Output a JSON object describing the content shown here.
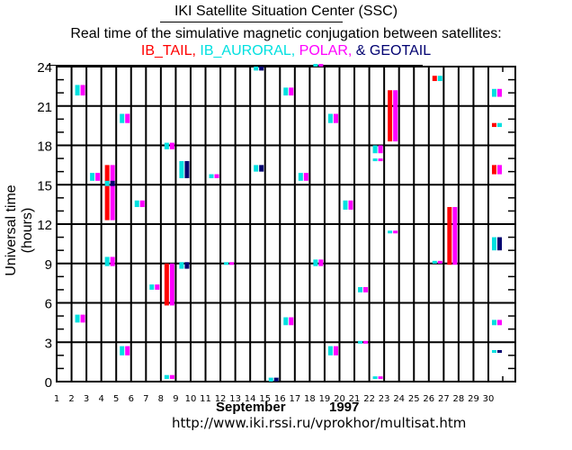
{
  "header": {
    "title": "IKI Satellite Situation Center (SSC)",
    "subtitle": "Real time of the simulative magnetic conjugation between satellites:",
    "legend": [
      {
        "label": "IB_TAIL,",
        "color": "#ff0000"
      },
      {
        "label": " IB_AURORAL,",
        "color": "#00e0e0"
      },
      {
        "label": " POLAR,",
        "color": "#ff00ff"
      },
      {
        "label": " & GEOTAIL",
        "color": "#000070"
      }
    ]
  },
  "footer": {
    "month": "September",
    "year": "1997",
    "url": "http://www.iki.rssi.ru/vprokhor/multisat.htm"
  },
  "chart_data": {
    "type": "scatter",
    "title": "Real time of the simulative magnetic conjugation between satellites",
    "xlabel": "September 1997",
    "ylabel": "Universal time (hours)",
    "xlim": [
      1,
      31
    ],
    "ylim": [
      0,
      24
    ],
    "x_ticks": [
      "1",
      "2",
      "3",
      "4",
      "5",
      "6",
      "7",
      "8",
      "9",
      "10",
      "11",
      "12",
      "13",
      "14",
      "15",
      "16",
      "17",
      "18",
      "19",
      "20",
      "21",
      "22",
      "23",
      "24",
      "25",
      "26",
      "27",
      "28",
      "29",
      "30"
    ],
    "y_ticks": [
      0,
      3,
      6,
      9,
      12,
      15,
      18,
      21,
      24
    ],
    "grid": true,
    "series_colors": {
      "IB_TAIL": "#ff0000",
      "IB_AURORAL": "#00e0e0",
      "POLAR": "#ff00ff",
      "GEOTAIL": "#000070"
    },
    "events": [
      {
        "day": 2,
        "sat": "IB_AURORAL",
        "start": 21.8,
        "end": 22.6
      },
      {
        "day": 2,
        "sat": "POLAR",
        "start": 21.8,
        "end": 22.6
      },
      {
        "day": 2,
        "sat": "IB_AURORAL",
        "start": 4.5,
        "end": 5.1
      },
      {
        "day": 2,
        "sat": "POLAR",
        "start": 4.5,
        "end": 5.1
      },
      {
        "day": 3,
        "sat": "IB_AURORAL",
        "start": 15.3,
        "end": 15.9
      },
      {
        "day": 3,
        "sat": "POLAR",
        "start": 15.3,
        "end": 15.9
      },
      {
        "day": 4,
        "sat": "IB_TAIL",
        "start": 12.3,
        "end": 16.5
      },
      {
        "day": 4,
        "sat": "POLAR",
        "start": 12.3,
        "end": 16.5
      },
      {
        "day": 4,
        "sat": "IB_AURORAL",
        "start": 14.9,
        "end": 15.3
      },
      {
        "day": 4,
        "sat": "GEOTAIL",
        "start": 14.9,
        "end": 15.3
      },
      {
        "day": 4,
        "sat": "IB_AURORAL",
        "start": 8.8,
        "end": 9.5
      },
      {
        "day": 4,
        "sat": "POLAR",
        "start": 8.8,
        "end": 9.5
      },
      {
        "day": 5,
        "sat": "IB_AURORAL",
        "start": 19.7,
        "end": 20.4
      },
      {
        "day": 5,
        "sat": "POLAR",
        "start": 19.7,
        "end": 20.4
      },
      {
        "day": 5,
        "sat": "IB_AURORAL",
        "start": 2.0,
        "end": 2.7
      },
      {
        "day": 5,
        "sat": "POLAR",
        "start": 2.0,
        "end": 2.7
      },
      {
        "day": 6,
        "sat": "IB_AURORAL",
        "start": 13.3,
        "end": 13.8
      },
      {
        "day": 6,
        "sat": "POLAR",
        "start": 13.3,
        "end": 13.8
      },
      {
        "day": 7,
        "sat": "IB_AURORAL",
        "start": 7.0,
        "end": 7.4
      },
      {
        "day": 7,
        "sat": "POLAR",
        "start": 7.0,
        "end": 7.4
      },
      {
        "day": 8,
        "sat": "IB_AURORAL",
        "start": 17.7,
        "end": 18.2
      },
      {
        "day": 8,
        "sat": "POLAR",
        "start": 17.7,
        "end": 18.2
      },
      {
        "day": 8,
        "sat": "IB_TAIL",
        "start": 5.8,
        "end": 9.0
      },
      {
        "day": 8,
        "sat": "POLAR",
        "start": 5.8,
        "end": 9.0
      },
      {
        "day": 8,
        "sat": "IB_AURORAL",
        "start": 0.2,
        "end": 0.5
      },
      {
        "day": 8,
        "sat": "POLAR",
        "start": 0.2,
        "end": 0.5
      },
      {
        "day": 9,
        "sat": "IB_AURORAL",
        "start": 15.5,
        "end": 16.8
      },
      {
        "day": 9,
        "sat": "GEOTAIL",
        "start": 15.5,
        "end": 16.8
      },
      {
        "day": 9,
        "sat": "IB_AURORAL",
        "start": 8.6,
        "end": 9.1
      },
      {
        "day": 9,
        "sat": "GEOTAIL",
        "start": 8.6,
        "end": 9.1
      },
      {
        "day": 11,
        "sat": "IB_AURORAL",
        "start": 15.5,
        "end": 15.8
      },
      {
        "day": 11,
        "sat": "POLAR",
        "start": 15.5,
        "end": 15.8
      },
      {
        "day": 12,
        "sat": "IB_AURORAL",
        "start": 8.9,
        "end": 9.1
      },
      {
        "day": 12,
        "sat": "POLAR",
        "start": 8.9,
        "end": 9.1
      },
      {
        "day": 14,
        "sat": "IB_AURORAL",
        "start": 23.7,
        "end": 24.0
      },
      {
        "day": 14,
        "sat": "GEOTAIL",
        "start": 23.7,
        "end": 24.0
      },
      {
        "day": 14,
        "sat": "IB_AURORAL",
        "start": 16.0,
        "end": 16.5
      },
      {
        "day": 14,
        "sat": "GEOTAIL",
        "start": 16.0,
        "end": 16.5
      },
      {
        "day": 15,
        "sat": "IB_AURORAL",
        "start": 0.0,
        "end": 0.3
      },
      {
        "day": 15,
        "sat": "GEOTAIL",
        "start": 0.0,
        "end": 0.3
      },
      {
        "day": 16,
        "sat": "IB_AURORAL",
        "start": 21.8,
        "end": 22.4
      },
      {
        "day": 16,
        "sat": "POLAR",
        "start": 21.8,
        "end": 22.4
      },
      {
        "day": 16,
        "sat": "IB_AURORAL",
        "start": 4.3,
        "end": 4.9
      },
      {
        "day": 16,
        "sat": "POLAR",
        "start": 4.3,
        "end": 4.9
      },
      {
        "day": 17,
        "sat": "IB_AURORAL",
        "start": 15.3,
        "end": 15.9
      },
      {
        "day": 17,
        "sat": "POLAR",
        "start": 15.3,
        "end": 15.9
      },
      {
        "day": 18,
        "sat": "IB_AURORAL",
        "start": 24.0,
        "end": 24.2
      },
      {
        "day": 18,
        "sat": "POLAR",
        "start": 24.0,
        "end": 24.2
      },
      {
        "day": 18,
        "sat": "IB_AURORAL",
        "start": 8.8,
        "end": 9.3
      },
      {
        "day": 18,
        "sat": "POLAR",
        "start": 8.8,
        "end": 9.3
      },
      {
        "day": 19,
        "sat": "IB_AURORAL",
        "start": 19.7,
        "end": 20.4
      },
      {
        "day": 19,
        "sat": "POLAR",
        "start": 19.7,
        "end": 20.4
      },
      {
        "day": 19,
        "sat": "IB_AURORAL",
        "start": 2.0,
        "end": 2.7
      },
      {
        "day": 19,
        "sat": "POLAR",
        "start": 2.0,
        "end": 2.7
      },
      {
        "day": 20,
        "sat": "IB_AURORAL",
        "start": 13.1,
        "end": 13.8
      },
      {
        "day": 20,
        "sat": "POLAR",
        "start": 13.1,
        "end": 13.8
      },
      {
        "day": 21,
        "sat": "IB_AURORAL",
        "start": 6.8,
        "end": 7.2
      },
      {
        "day": 21,
        "sat": "POLAR",
        "start": 6.8,
        "end": 7.2
      },
      {
        "day": 21,
        "sat": "IB_AURORAL",
        "start": 2.9,
        "end": 3.1
      },
      {
        "day": 21,
        "sat": "POLAR",
        "start": 2.9,
        "end": 3.1
      },
      {
        "day": 22,
        "sat": "IB_AURORAL",
        "start": 17.4,
        "end": 18.0
      },
      {
        "day": 22,
        "sat": "POLAR",
        "start": 17.4,
        "end": 18.0
      },
      {
        "day": 22,
        "sat": "IB_AURORAL",
        "start": 16.8,
        "end": 17.0
      },
      {
        "day": 22,
        "sat": "POLAR",
        "start": 16.8,
        "end": 17.0
      },
      {
        "day": 22,
        "sat": "IB_AURORAL",
        "start": 0.2,
        "end": 0.4
      },
      {
        "day": 22,
        "sat": "POLAR",
        "start": 0.2,
        "end": 0.4
      },
      {
        "day": 23,
        "sat": "IB_TAIL",
        "start": 18.3,
        "end": 22.2
      },
      {
        "day": 23,
        "sat": "POLAR",
        "start": 18.3,
        "end": 22.2
      },
      {
        "day": 23,
        "sat": "IB_AURORAL",
        "start": 11.3,
        "end": 11.5
      },
      {
        "day": 23,
        "sat": "POLAR",
        "start": 11.3,
        "end": 11.5
      },
      {
        "day": 26,
        "sat": "IB_TAIL",
        "start": 22.9,
        "end": 23.3
      },
      {
        "day": 26,
        "sat": "IB_AURORAL",
        "start": 22.9,
        "end": 23.3
      },
      {
        "day": 26,
        "sat": "IB_AURORAL",
        "start": 9.0,
        "end": 9.2
      },
      {
        "day": 26,
        "sat": "POLAR",
        "start": 9.0,
        "end": 9.2
      },
      {
        "day": 27,
        "sat": "IB_TAIL",
        "start": 8.9,
        "end": 13.3
      },
      {
        "day": 27,
        "sat": "POLAR",
        "start": 8.9,
        "end": 13.3
      },
      {
        "day": 30,
        "sat": "IB_AURORAL",
        "start": 21.7,
        "end": 22.3
      },
      {
        "day": 30,
        "sat": "POLAR",
        "start": 21.7,
        "end": 22.3
      },
      {
        "day": 30,
        "sat": "IB_TAIL",
        "start": 19.4,
        "end": 19.7
      },
      {
        "day": 30,
        "sat": "IB_AURORAL",
        "start": 19.4,
        "end": 19.7
      },
      {
        "day": 30,
        "sat": "IB_TAIL",
        "start": 15.8,
        "end": 16.5
      },
      {
        "day": 30,
        "sat": "POLAR",
        "start": 15.8,
        "end": 16.5
      },
      {
        "day": 30,
        "sat": "IB_AURORAL",
        "start": 10.0,
        "end": 11.0
      },
      {
        "day": 30,
        "sat": "GEOTAIL",
        "start": 10.0,
        "end": 11.0
      },
      {
        "day": 30,
        "sat": "IB_AURORAL",
        "start": 4.3,
        "end": 4.7
      },
      {
        "day": 30,
        "sat": "POLAR",
        "start": 4.3,
        "end": 4.7
      },
      {
        "day": 30,
        "sat": "IB_AURORAL",
        "start": 2.2,
        "end": 2.4
      },
      {
        "day": 30,
        "sat": "GEOTAIL",
        "start": 2.2,
        "end": 2.4
      }
    ]
  }
}
